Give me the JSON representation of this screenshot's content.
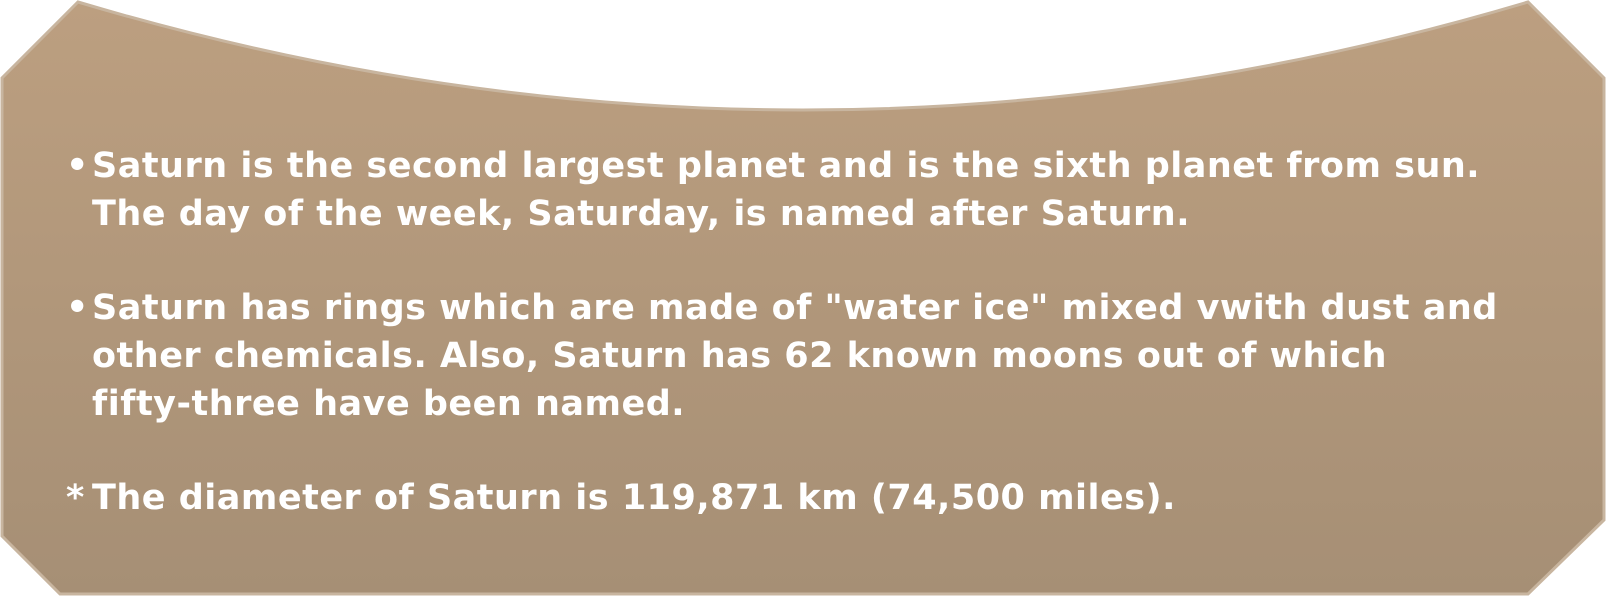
{
  "panel": {
    "fill_top": "#bc9f80",
    "fill_bottom": "#a68f75",
    "border": "#c8b59f",
    "text_color": "#ffffff"
  },
  "items": [
    {
      "marker": "•",
      "lines": [
        "Saturn is the second largest planet and is the sixth planet from sun.",
        "The day of the week, Saturday, is named after Saturn."
      ]
    },
    {
      "marker": "•",
      "lines": [
        "Saturn has rings which are made of \"water ice\" mixed vwith dust and",
        "other chemicals. Also, Saturn has 62 known moons out of which",
        "fifty-three have been named."
      ]
    },
    {
      "marker": "*",
      "lines": [
        "The diameter of Saturn is 119,871 km (74,500 miles)."
      ]
    }
  ]
}
